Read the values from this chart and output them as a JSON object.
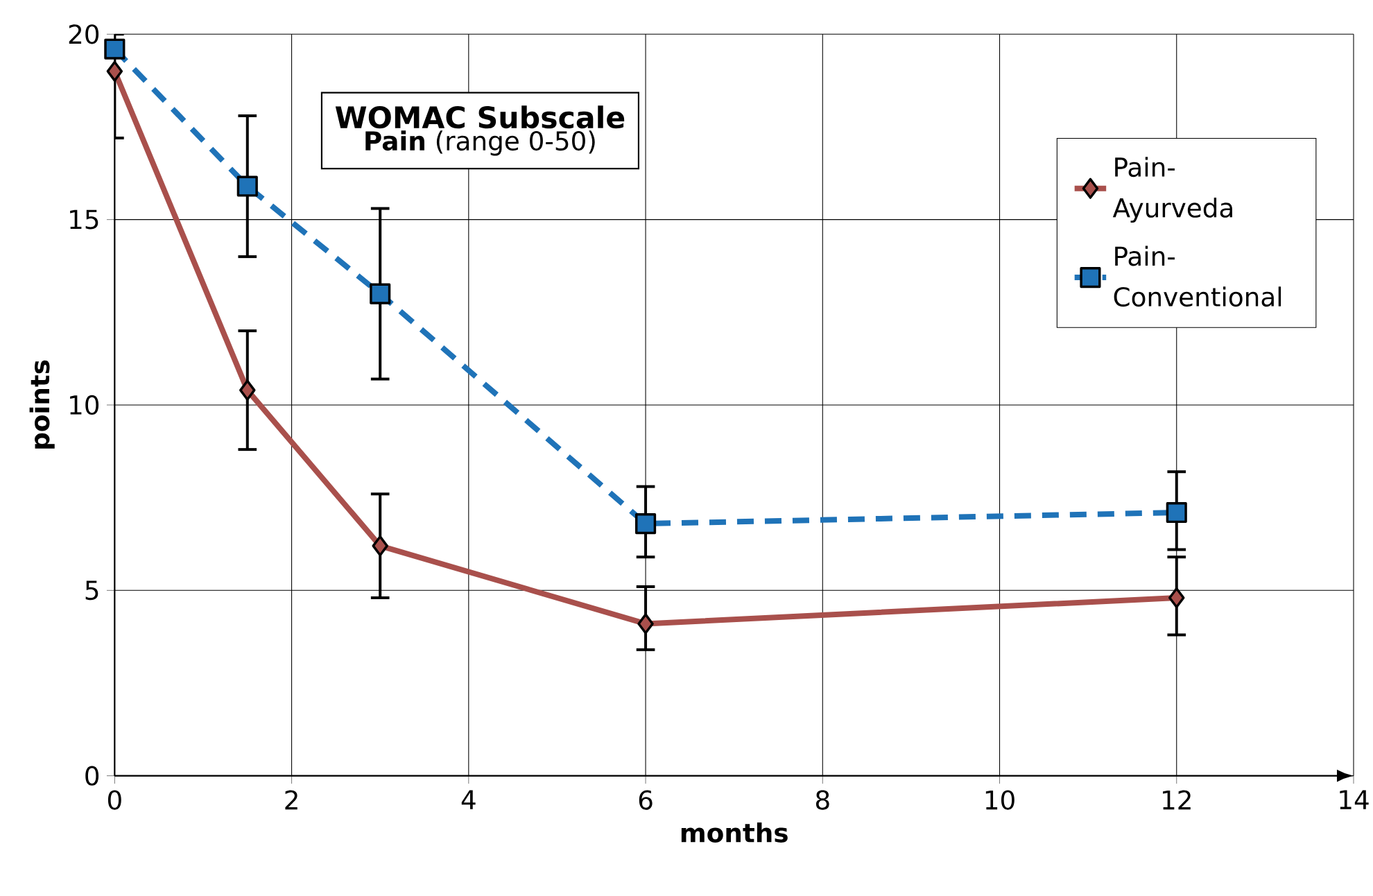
{
  "chart_data": {
    "type": "line",
    "title": "WOMAC Subscale",
    "subtitle": "**Pain** (range 0-50)",
    "xlabel": "months",
    "ylabel": "points",
    "x": [
      0,
      1.5,
      3,
      6,
      12
    ],
    "series": [
      {
        "name": "Pain-Ayurveda",
        "color": "#a9504c",
        "marker": "diamond",
        "line_style": "solid",
        "values": [
          19.0,
          10.4,
          6.2,
          4.1,
          4.8
        ],
        "errors": [
          [
            17.2,
            20
          ],
          [
            8.8,
            12.0
          ],
          [
            4.8,
            7.6
          ],
          [
            3.4,
            5.1
          ],
          [
            3.8,
            5.9
          ]
        ]
      },
      {
        "name": "Pain-Conventional",
        "color": "#1f73b8",
        "marker": "square",
        "line_style": "dashed",
        "values": [
          19.6,
          15.9,
          13.0,
          6.8,
          7.1
        ],
        "errors": [
          null,
          [
            14.0,
            17.8
          ],
          [
            10.7,
            15.3
          ],
          [
            5.9,
            7.8
          ],
          [
            6.1,
            8.2
          ]
        ]
      }
    ],
    "xlim": [
      0,
      14
    ],
    "xticks": [
      0,
      2,
      4,
      6,
      8,
      10,
      12,
      14
    ],
    "ylim": [
      0,
      20
    ],
    "yticks": [
      0,
      5,
      10,
      15,
      20
    ],
    "grid": true,
    "legend": "top right"
  }
}
